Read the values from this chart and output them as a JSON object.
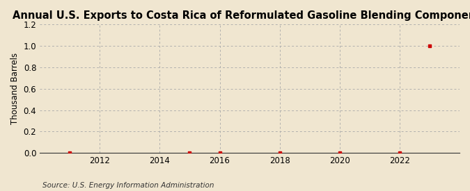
{
  "title": "Annual U.S. Exports to Costa Rica of Reformulated Gasoline Blending Components",
  "ylabel": "Thousand Barrels",
  "source": "Source: U.S. Energy Information Administration",
  "background_color": "#f0e6d0",
  "plot_background_color": "#f0e6d0",
  "data_x": [
    2011,
    2015,
    2016,
    2018,
    2020,
    2022,
    2023
  ],
  "data_y": [
    0.0,
    0.0,
    0.0,
    0.0,
    0.0,
    0.0,
    1.0
  ],
  "point_color": "#cc0000",
  "point_size": 10,
  "xlim": [
    2010,
    2024
  ],
  "ylim": [
    0.0,
    1.2
  ],
  "yticks": [
    0.0,
    0.2,
    0.4,
    0.6,
    0.8,
    1.0,
    1.2
  ],
  "xticks": [
    2012,
    2014,
    2016,
    2018,
    2020,
    2022
  ],
  "grid_color": "#aaaaaa",
  "title_fontsize": 10.5,
  "label_fontsize": 8.5,
  "tick_fontsize": 8.5,
  "source_fontsize": 7.5
}
